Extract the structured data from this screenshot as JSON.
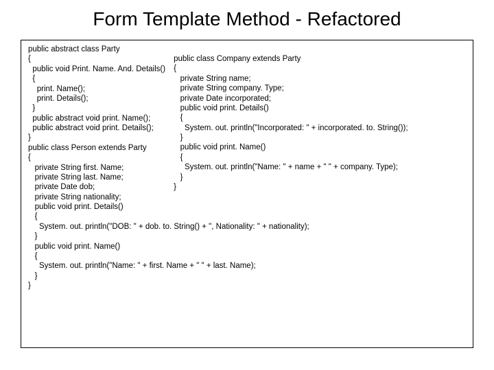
{
  "title": "Form Template Method - Refactored",
  "left": {
    "l0": "public abstract class Party",
    "l1": "{",
    "l2": "  public void Print. Name. And. Details()",
    "l3": "  {",
    "l4": "    print. Name();",
    "l5": "    print. Details();",
    "l6": "  }",
    "l7": "  public abstract void print. Name();",
    "l8": "  public abstract void print. Details();",
    "l9": "}",
    "l10": "",
    "l11": "public class Person extends Party",
    "l12": "{",
    "l13": "   private String first. Name;",
    "l14": "   private String last. Name;",
    "l15": "   private Date dob;"
  },
  "right": {
    "r0": "public class Company extends Party",
    "r1": "{",
    "r2": "   private String name;",
    "r3": "   private String company. Type;",
    "r4": "   private Date incorporated;",
    "r5": "   public void print. Details()",
    "r6": "   {",
    "r7": "     System. out. println(\"Incorporated: \" + incorporated. to. String());",
    "r8": "   }",
    "r9": "   public void print. Name()",
    "r10": "   {",
    "r11": "     System. out. println(\"Name: \" + name + \" \" + company. Type);",
    "r12": "   }",
    "r13": "}"
  },
  "bottom": {
    "b0": "   private String nationality;",
    "b1": "   public void print. Details()",
    "b2": "   {",
    "b3": "     System. out. println(\"DOB: \" + dob. to. String() + \", Nationality: \" + nationality);",
    "b4": "   }",
    "b5": "   public void print. Name()",
    "b6": "   {",
    "b7": "     System. out. println(\"Name: \" + first. Name + \" \" + last. Name);",
    "b8": "   }",
    "b9": "}"
  }
}
